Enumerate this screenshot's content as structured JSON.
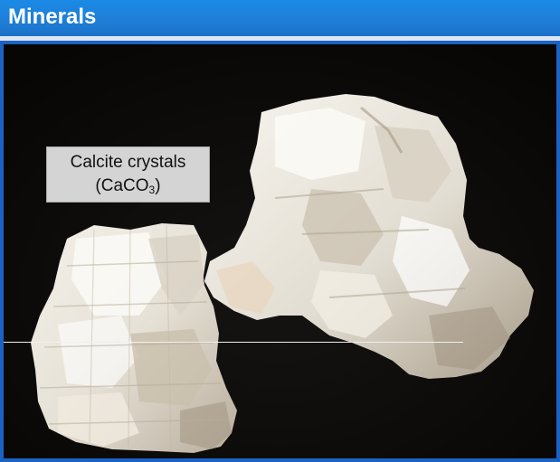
{
  "header": {
    "title": "Minerals"
  },
  "photo": {
    "caption_line1": "Calcite crystals",
    "caption_formula_prefix": "(CaCO",
    "caption_formula_subscript": "3",
    "caption_formula_suffix": ")"
  },
  "colors": {
    "title_bar": "#1f7fd8",
    "frame": "#1b63c3",
    "background": "#0b0a09",
    "caption_box": "#d4d4d4"
  }
}
